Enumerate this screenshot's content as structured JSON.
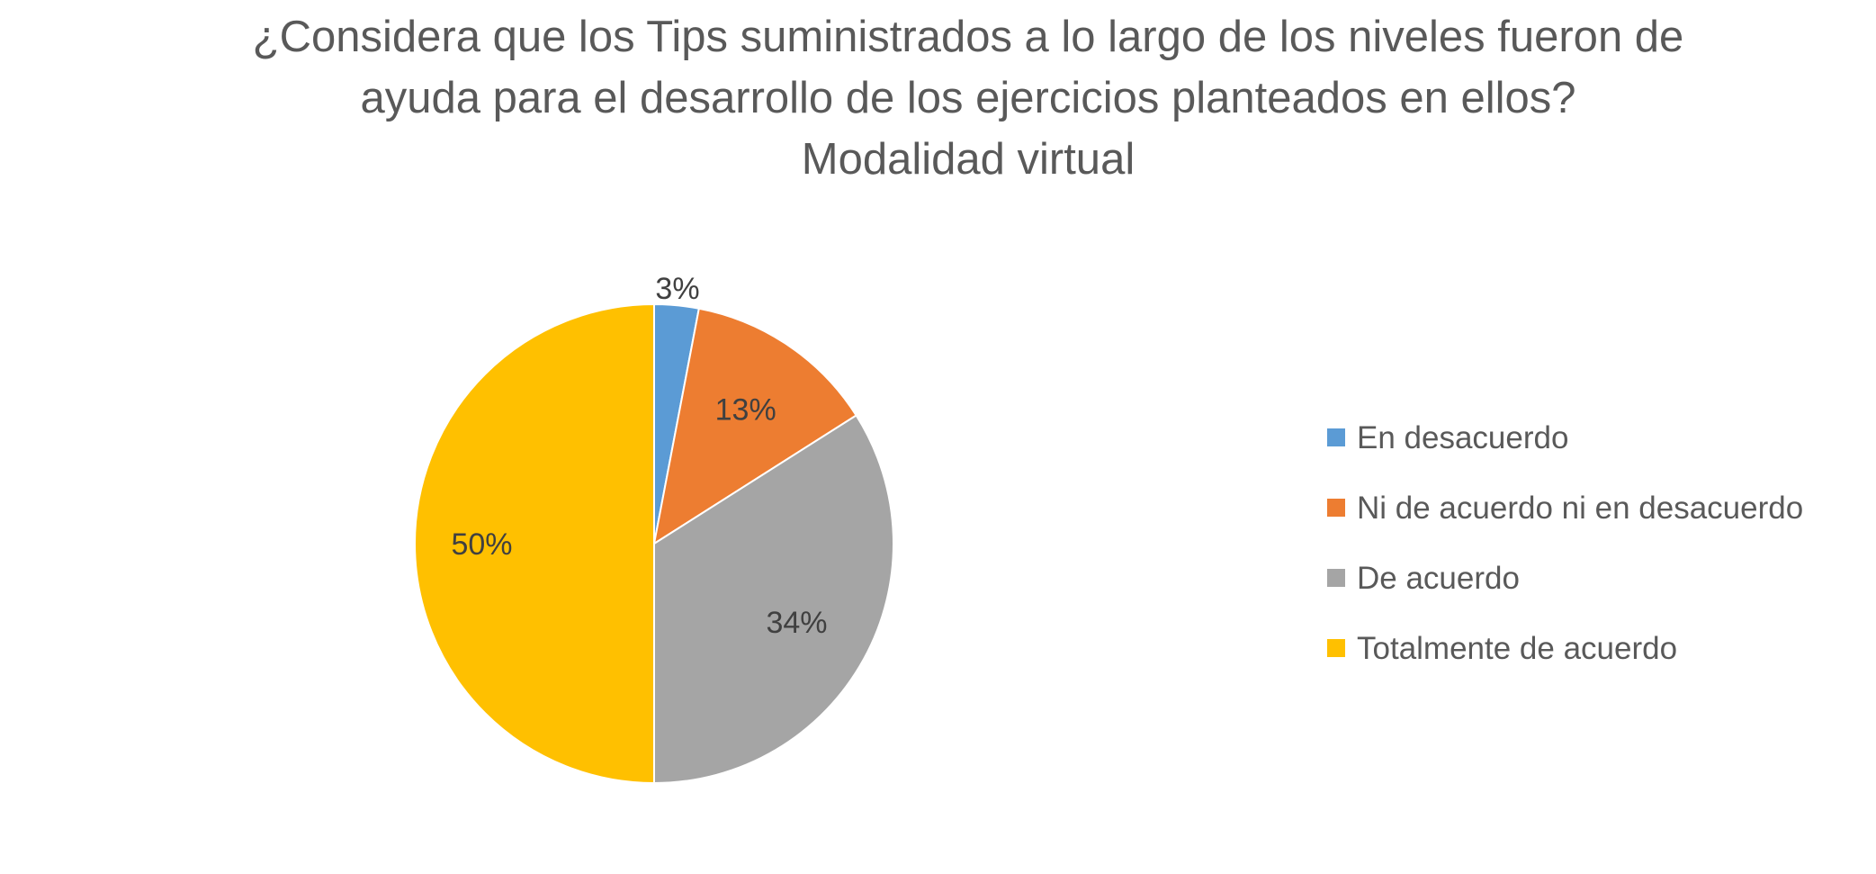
{
  "chart_data": {
    "type": "pie",
    "title": "¿Considera que los Tips suministrados a lo largo de los niveles fueron de ayuda para el desarrollo de los ejercicios planteados en ellos? Modalidad virtual",
    "title_lines": [
      "¿Considera que los Tips suministrados a lo largo de los niveles fueron de",
      "ayuda para el desarrollo de los ejercicios planteados en ellos?",
      "Modalidad virtual"
    ],
    "categories": [
      "En desacuerdo",
      "Ni de acuerdo ni en desacuerdo",
      "De acuerdo",
      "Totalmente de acuerdo"
    ],
    "values": [
      3,
      13,
      34,
      50
    ],
    "data_labels": [
      "3%",
      "13%",
      "34%",
      "50%"
    ],
    "colors": [
      "#5B9BD5",
      "#ED7D31",
      "#A5A5A5",
      "#FFC000"
    ],
    "legend_position": "right"
  }
}
